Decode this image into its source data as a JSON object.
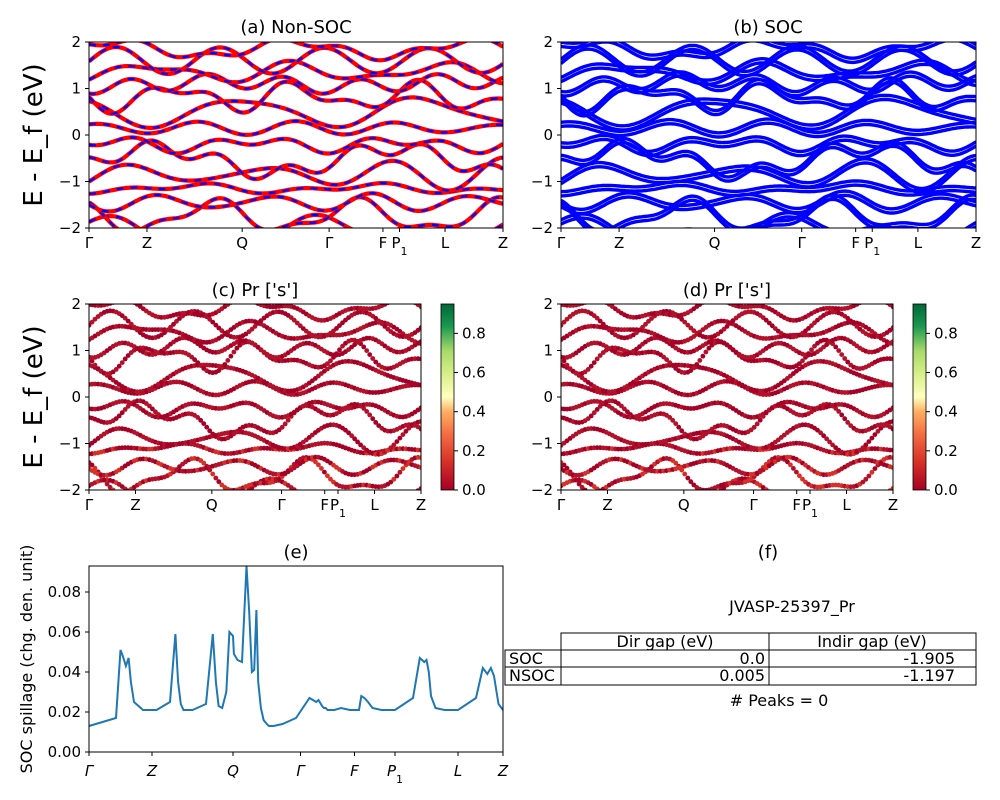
{
  "chart_data": [
    {
      "panel": "a",
      "type": "line",
      "title": "(a) Non-SOC",
      "ylabel": "E - E_f (eV)",
      "xlim": [
        0,
        10
      ],
      "ylim": [
        -2,
        2
      ],
      "yticks": [
        "2",
        "1",
        "0",
        "−1",
        "−2"
      ],
      "kpath": [
        {
          "label": "Γ",
          "x": 0
        },
        {
          "label": "Z",
          "x": 1.4
        },
        {
          "label": "Q",
          "x": 3.7
        },
        {
          "label": "Γ",
          "x": 5.8
        },
        {
          "label": "F",
          "x": 7.1
        },
        {
          "label": "P1",
          "x": 7.5
        },
        {
          "label": "L",
          "x": 8.6
        },
        {
          "label": "Z",
          "x": 10
        }
      ],
      "series": [
        {
          "color": "#ff0000",
          "style": "solid"
        },
        {
          "color": "#0000ff",
          "style": "dashed"
        }
      ]
    },
    {
      "panel": "b",
      "type": "line",
      "title": "(b) SOC",
      "xlim": [
        0,
        10
      ],
      "ylim": [
        -2,
        2
      ],
      "yticks": [
        "2",
        "1",
        "0",
        "−1",
        "−2"
      ],
      "kpath": [
        {
          "label": "Γ",
          "x": 0
        },
        {
          "label": "Z",
          "x": 1.4
        },
        {
          "label": "Q",
          "x": 3.7
        },
        {
          "label": "Γ",
          "x": 5.8
        },
        {
          "label": "F",
          "x": 7.1
        },
        {
          "label": "P1",
          "x": 7.5
        },
        {
          "label": "L",
          "x": 8.6
        },
        {
          "label": "Z",
          "x": 10
        }
      ],
      "series": [
        {
          "color": "#0000ff",
          "style": "solid"
        }
      ]
    },
    {
      "panel": "c",
      "type": "scatter",
      "title": "(c)  Pr ['s']",
      "ylabel": "E - E_f (eV)",
      "xlim": [
        0,
        10
      ],
      "ylim": [
        -2,
        2
      ],
      "yticks": [
        "2",
        "1",
        "0",
        "−1",
        "−2"
      ],
      "kpath": [
        {
          "label": "Γ",
          "x": 0
        },
        {
          "label": "Z",
          "x": 1.4
        },
        {
          "label": "Q",
          "x": 3.7
        },
        {
          "label": "Γ",
          "x": 5.8
        },
        {
          "label": "F",
          "x": 7.1
        },
        {
          "label": "P1",
          "x": 7.5
        },
        {
          "label": "L",
          "x": 8.6
        },
        {
          "label": "Z",
          "x": 10
        }
      ],
      "colorbar": {
        "min": 0.0,
        "max": 0.95,
        "ticks": [
          "0.0",
          "0.2",
          "0.4",
          "0.6",
          "0.8"
        ]
      }
    },
    {
      "panel": "d",
      "type": "scatter",
      "title": "(d) Pr ['s']",
      "xlim": [
        0,
        10
      ],
      "ylim": [
        -2,
        2
      ],
      "yticks": [
        "2",
        "1",
        "0",
        "−1",
        "−2"
      ],
      "kpath": [
        {
          "label": "Γ",
          "x": 0
        },
        {
          "label": "Z",
          "x": 1.4
        },
        {
          "label": "Q",
          "x": 3.7
        },
        {
          "label": "Γ",
          "x": 5.8
        },
        {
          "label": "F",
          "x": 7.1
        },
        {
          "label": "P1",
          "x": 7.5
        },
        {
          "label": "L",
          "x": 8.6
        },
        {
          "label": "Z",
          "x": 10
        }
      ],
      "colorbar": {
        "min": 0.0,
        "max": 0.95,
        "ticks": [
          "0.0",
          "0.2",
          "0.4",
          "0.6",
          "0.8"
        ]
      }
    },
    {
      "panel": "e",
      "type": "line",
      "title": "(e)",
      "ylabel": "SOC spillage (chg. den. unit)",
      "ylim": [
        0,
        0.093
      ],
      "yticks": [
        "0.00",
        "0.02",
        "0.04",
        "0.06",
        "0.08"
      ],
      "kpath": [
        {
          "label": "Γ",
          "x": 0
        },
        {
          "label": "Z",
          "x": 1.4
        },
        {
          "label": "Q",
          "x": 3.2
        },
        {
          "label": "Γ",
          "x": 4.7
        },
        {
          "label": "F",
          "x": 5.9
        },
        {
          "label": "P1",
          "x": 6.8
        },
        {
          "label": "L",
          "x": 8.2
        },
        {
          "label": "Z",
          "x": 9.2
        }
      ],
      "x": [
        0,
        0.3,
        0.6,
        0.7,
        0.75,
        0.82,
        0.88,
        0.93,
        1.0,
        1.2,
        1.5,
        1.8,
        1.92,
        1.98,
        2.04,
        2.1,
        2.3,
        2.6,
        2.75,
        2.82,
        2.88,
        2.96,
        3.05,
        3.12,
        3.2,
        3.22,
        3.3,
        3.4,
        3.5,
        3.56,
        3.62,
        3.67,
        3.72,
        3.76,
        3.82,
        3.88,
        3.95,
        4.0,
        4.1,
        4.3,
        4.6,
        4.9,
        5.05,
        5.1,
        5.18,
        5.22,
        5.26,
        5.3,
        5.35,
        5.45,
        5.6,
        5.8,
        6.0,
        6.05,
        6.12,
        6.2,
        6.3,
        6.5,
        6.8,
        7.2,
        7.35,
        7.45,
        7.5,
        7.55,
        7.6,
        7.7,
        7.9,
        8.2,
        8.6,
        8.75,
        8.85,
        8.93,
        9.0,
        9.1,
        9.2
      ],
      "y": [
        0.013,
        0.015,
        0.017,
        0.051,
        0.048,
        0.043,
        0.047,
        0.035,
        0.025,
        0.021,
        0.021,
        0.025,
        0.059,
        0.035,
        0.024,
        0.021,
        0.021,
        0.024,
        0.059,
        0.035,
        0.023,
        0.022,
        0.03,
        0.06,
        0.058,
        0.049,
        0.046,
        0.045,
        0.094,
        0.07,
        0.04,
        0.041,
        0.071,
        0.035,
        0.022,
        0.016,
        0.014,
        0.013,
        0.013,
        0.014,
        0.017,
        0.027,
        0.025,
        0.026,
        0.023,
        0.022,
        0.022,
        0.021,
        0.021,
        0.021,
        0.022,
        0.021,
        0.021,
        0.028,
        0.027,
        0.025,
        0.022,
        0.021,
        0.021,
        0.027,
        0.047,
        0.045,
        0.046,
        0.04,
        0.028,
        0.022,
        0.021,
        0.021,
        0.027,
        0.042,
        0.039,
        0.042,
        0.038,
        0.024,
        0.021
      ],
      "color": "#1f77b4"
    }
  ],
  "summary": {
    "title": "(f)",
    "material": "JVASP-25397_Pr",
    "headers": [
      "",
      "Dir gap (eV)",
      "Indir gap (eV)"
    ],
    "rows": [
      {
        "label": "SOC",
        "dir_gap": "0.0",
        "indir_gap": "-1.905"
      },
      {
        "label": "NSOC",
        "dir_gap": "0.005",
        "indir_gap": "-1.197"
      }
    ],
    "peaks": "# Peaks = 0"
  }
}
